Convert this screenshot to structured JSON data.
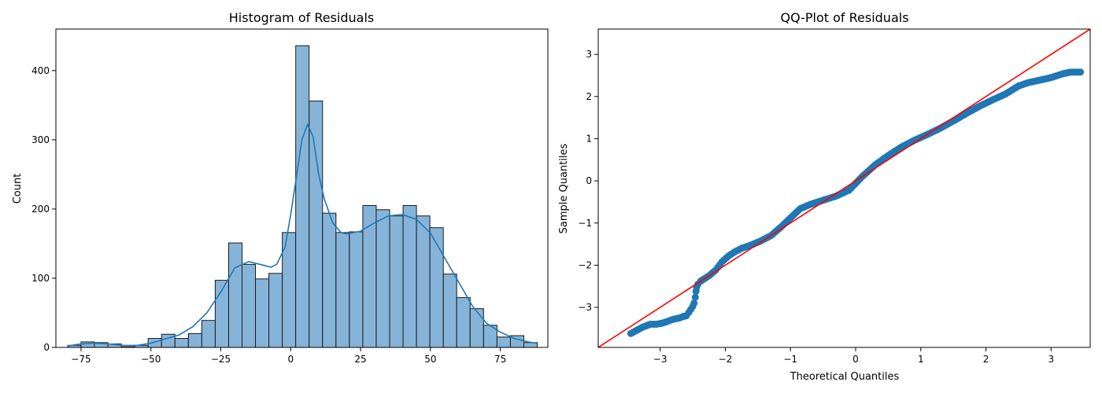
{
  "chart_data": [
    {
      "type": "bar",
      "subtype": "histogram_with_kde",
      "title": "Histogram of Residuals",
      "xlabel": "",
      "ylabel": "Count",
      "xlim": [
        -84,
        92
      ],
      "ylim": [
        0,
        460
      ],
      "xticks": [
        -75,
        -50,
        -25,
        0,
        25,
        50,
        75
      ],
      "yticks": [
        0,
        100,
        200,
        300,
        400
      ],
      "grid": false,
      "bar_color": "#86b4d9",
      "edge_color": "#1a1a1a",
      "kde_color": "#1f77b4",
      "bins": [
        {
          "x0": -79.7,
          "x1": -75.0,
          "count": 3
        },
        {
          "x0": -75.0,
          "x1": -70.2,
          "count": 8
        },
        {
          "x0": -70.2,
          "x1": -65.4,
          "count": 7
        },
        {
          "x0": -65.4,
          "x1": -60.6,
          "count": 5
        },
        {
          "x0": -60.6,
          "x1": -55.8,
          "count": 1
        },
        {
          "x0": -55.8,
          "x1": -51.0,
          "count": 3
        },
        {
          "x0": -51.0,
          "x1": -46.2,
          "count": 13
        },
        {
          "x0": -46.2,
          "x1": -41.4,
          "count": 19
        },
        {
          "x0": -41.4,
          "x1": -36.6,
          "count": 13
        },
        {
          "x0": -36.6,
          "x1": -31.8,
          "count": 20
        },
        {
          "x0": -31.8,
          "x1": -27.0,
          "count": 39
        },
        {
          "x0": -27.0,
          "x1": -22.2,
          "count": 97
        },
        {
          "x0": -22.2,
          "x1": -17.4,
          "count": 151
        },
        {
          "x0": -17.4,
          "x1": -12.6,
          "count": 120
        },
        {
          "x0": -12.6,
          "x1": -7.8,
          "count": 99
        },
        {
          "x0": -7.8,
          "x1": -3.0,
          "count": 107
        },
        {
          "x0": -3.0,
          "x1": 1.8,
          "count": 166
        },
        {
          "x0": 1.8,
          "x1": 6.6,
          "count": 436
        },
        {
          "x0": 6.6,
          "x1": 11.4,
          "count": 356
        },
        {
          "x0": 11.4,
          "x1": 16.2,
          "count": 194
        },
        {
          "x0": 16.2,
          "x1": 21.0,
          "count": 166
        },
        {
          "x0": 21.0,
          "x1": 25.8,
          "count": 167
        },
        {
          "x0": 25.8,
          "x1": 30.6,
          "count": 205
        },
        {
          "x0": 30.6,
          "x1": 35.4,
          "count": 199
        },
        {
          "x0": 35.4,
          "x1": 40.2,
          "count": 190
        },
        {
          "x0": 40.2,
          "x1": 45.0,
          "count": 205
        },
        {
          "x0": 45.0,
          "x1": 49.8,
          "count": 190
        },
        {
          "x0": 49.8,
          "x1": 54.6,
          "count": 173
        },
        {
          "x0": 54.6,
          "x1": 59.4,
          "count": 106
        },
        {
          "x0": 59.4,
          "x1": 64.2,
          "count": 72
        },
        {
          "x0": 64.2,
          "x1": 69.0,
          "count": 56
        },
        {
          "x0": 69.0,
          "x1": 73.8,
          "count": 32
        },
        {
          "x0": 73.8,
          "x1": 78.6,
          "count": 15
        },
        {
          "x0": 78.6,
          "x1": 83.4,
          "count": 17
        },
        {
          "x0": 83.4,
          "x1": 88.2,
          "count": 7
        }
      ],
      "kde": {
        "x": [
          -80,
          -75,
          -70,
          -65,
          -60,
          -55,
          -50,
          -45,
          -40,
          -35,
          -30,
          -25,
          -20,
          -15,
          -10,
          -7,
          -5,
          -2,
          0,
          2,
          4,
          6,
          8,
          10,
          12,
          15,
          18,
          20,
          25,
          30,
          35,
          40,
          45,
          50,
          55,
          60,
          65,
          70,
          75,
          80,
          85,
          88
        ],
        "y": [
          2,
          5,
          6,
          5,
          3,
          3,
          6,
          12,
          18,
          30,
          50,
          80,
          115,
          124,
          119,
          116,
          120,
          145,
          192,
          245,
          300,
          322,
          305,
          250,
          215,
          180,
          166,
          164,
          168,
          180,
          190,
          192,
          185,
          165,
          130,
          95,
          60,
          35,
          22,
          13,
          8,
          6
        ]
      }
    },
    {
      "type": "scatter",
      "subtype": "qq_plot",
      "title": "QQ-Plot of Residuals",
      "xlabel": "Theoretical Quantiles",
      "ylabel": "Sample Quantiles",
      "xlim": [
        -3.95,
        3.6
      ],
      "ylim": [
        -3.95,
        3.6
      ],
      "xticks": [
        -3,
        -2,
        -1,
        0,
        1,
        2,
        3
      ],
      "yticks": [
        -3,
        -2,
        -1,
        0,
        1,
        2,
        3
      ],
      "grid": false,
      "point_color": "#1f77b4",
      "line_color": "#ff0000",
      "reference_line": {
        "slope": 1,
        "intercept": 0
      },
      "points": {
        "x": [
          -3.45,
          -3.27,
          -3.15,
          -3.06,
          -2.98,
          -2.9,
          -2.83,
          -2.76,
          -2.7,
          -2.65,
          -2.6,
          -2.56,
          -2.53,
          -2.5,
          -2.48,
          -2.46,
          -2.45,
          -2.44,
          -2.42,
          -2.38,
          -2.33,
          -2.25,
          -2.15,
          -2.05,
          -1.95,
          -1.85,
          -1.75,
          -1.6,
          -1.45,
          -1.3,
          -1.15,
          -1.0,
          -0.85,
          -0.7,
          -0.5,
          -0.3,
          -0.1,
          0.1,
          0.3,
          0.5,
          0.7,
          0.9,
          1.1,
          1.3,
          1.5,
          1.7,
          1.9,
          2.1,
          2.3,
          2.5,
          2.65,
          2.8,
          2.92,
          3.02,
          3.1,
          3.18,
          3.3,
          3.45
        ],
        "y": [
          -3.62,
          -3.47,
          -3.4,
          -3.4,
          -3.38,
          -3.34,
          -3.3,
          -3.27,
          -3.25,
          -3.22,
          -3.2,
          -3.12,
          -3.05,
          -2.98,
          -2.9,
          -2.76,
          -2.62,
          -2.52,
          -2.45,
          -2.38,
          -2.33,
          -2.25,
          -2.12,
          -1.92,
          -1.78,
          -1.68,
          -1.6,
          -1.52,
          -1.42,
          -1.3,
          -1.1,
          -0.88,
          -0.66,
          -0.56,
          -0.46,
          -0.36,
          -0.22,
          0.1,
          0.38,
          0.6,
          0.8,
          0.96,
          1.1,
          1.25,
          1.42,
          1.6,
          1.77,
          1.92,
          2.06,
          2.25,
          2.33,
          2.38,
          2.42,
          2.46,
          2.5,
          2.54,
          2.58,
          2.58
        ]
      }
    }
  ]
}
